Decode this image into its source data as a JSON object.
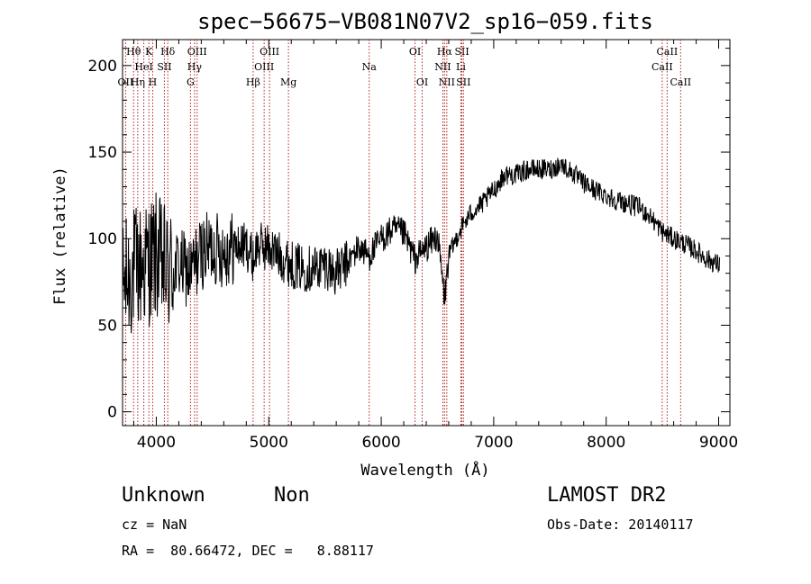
{
  "chart_data": {
    "type": "line",
    "title": "spec−56675−VB081N07V2_sp16−059.fits",
    "xlabel": "Wavelength (Å)",
    "ylabel": "Flux (relative)",
    "xlim": [
      3700,
      9100
    ],
    "ylim": [
      -8,
      215
    ],
    "xticks": [
      4000,
      5000,
      6000,
      7000,
      8000,
      9000
    ],
    "yticks": [
      0,
      50,
      100,
      150,
      200
    ],
    "grid": false,
    "spectrum_envelope": {
      "x": [
        3700,
        3800,
        3900,
        4000,
        4100,
        4200,
        4300,
        4400,
        4500,
        4600,
        4700,
        4800,
        4861,
        4900,
        5000,
        5100,
        5200,
        5300,
        5400,
        5500,
        5600,
        5700,
        5800,
        5893,
        6000,
        6100,
        6200,
        6300,
        6400,
        6500,
        6563,
        6600,
        6700,
        6800,
        6900,
        7000,
        7100,
        7200,
        7300,
        7400,
        7500,
        7600,
        7700,
        7800,
        7900,
        8000,
        8100,
        8200,
        8300,
        8400,
        8500,
        8600,
        8700,
        8800,
        8900,
        9000
      ],
      "y": [
        72,
        82,
        85,
        90,
        80,
        85,
        80,
        92,
        95,
        93,
        95,
        96,
        88,
        96,
        95,
        90,
        85,
        83,
        83,
        85,
        80,
        86,
        95,
        90,
        100,
        105,
        103,
        88,
        95,
        102,
        65,
        90,
        105,
        115,
        120,
        128,
        137,
        137,
        140,
        140,
        140,
        143,
        138,
        132,
        128,
        125,
        122,
        120,
        118,
        112,
        104,
        100,
        97,
        93,
        88,
        85
      ]
    },
    "line_markers": [
      {
        "label": "Hθ",
        "x": 3798,
        "row": 1
      },
      {
        "label": "K",
        "x": 3934,
        "row": 1
      },
      {
        "label": "Hδ",
        "x": 4102,
        "row": 1
      },
      {
        "label": "OIII",
        "x": 4363,
        "row": 1
      },
      {
        "label": "OIII",
        "x": 5007,
        "row": 1
      },
      {
        "label": "OI",
        "x": 6300,
        "row": 1
      },
      {
        "label": "Hα",
        "x": 6563,
        "row": 1
      },
      {
        "label": "SII",
        "x": 6717,
        "row": 1
      },
      {
        "label": "CaII",
        "x": 8542,
        "row": 1
      },
      {
        "label": "HeI",
        "x": 3889,
        "row": 2
      },
      {
        "label": "SII",
        "x": 4072,
        "row": 2
      },
      {
        "label": "Hγ",
        "x": 4340,
        "row": 2
      },
      {
        "label": "OIII",
        "x": 4959,
        "row": 2
      },
      {
        "label": "Na",
        "x": 5893,
        "row": 2
      },
      {
        "label": "NII",
        "x": 6548,
        "row": 2
      },
      {
        "label": "Li",
        "x": 6708,
        "row": 2
      },
      {
        "label": "CaII",
        "x": 8498,
        "row": 2
      },
      {
        "label": "OII",
        "x": 3727,
        "row": 3
      },
      {
        "label": "Hη",
        "x": 3835,
        "row": 3
      },
      {
        "label": "H",
        "x": 3968,
        "row": 3
      },
      {
        "label": "G",
        "x": 4304,
        "row": 3
      },
      {
        "label": "Hβ",
        "x": 4861,
        "row": 3
      },
      {
        "label": "Mg",
        "x": 5175,
        "row": 3
      },
      {
        "label": "OI",
        "x": 6364,
        "row": 3
      },
      {
        "label": "NII",
        "x": 6583,
        "row": 3
      },
      {
        "label": "SII",
        "x": 6731,
        "row": 3
      },
      {
        "label": "CaII",
        "x": 8662,
        "row": 3
      }
    ],
    "marker_color": "#b22222",
    "line_color": "#000000"
  },
  "footer": {
    "class_label": "Unknown",
    "subclass_label": "Non",
    "survey": "LAMOST DR2",
    "cz": "cz = NaN",
    "obs_date": "Obs-Date: 20140117",
    "radec": "RA =  80.66472, DEC =   8.88117"
  }
}
